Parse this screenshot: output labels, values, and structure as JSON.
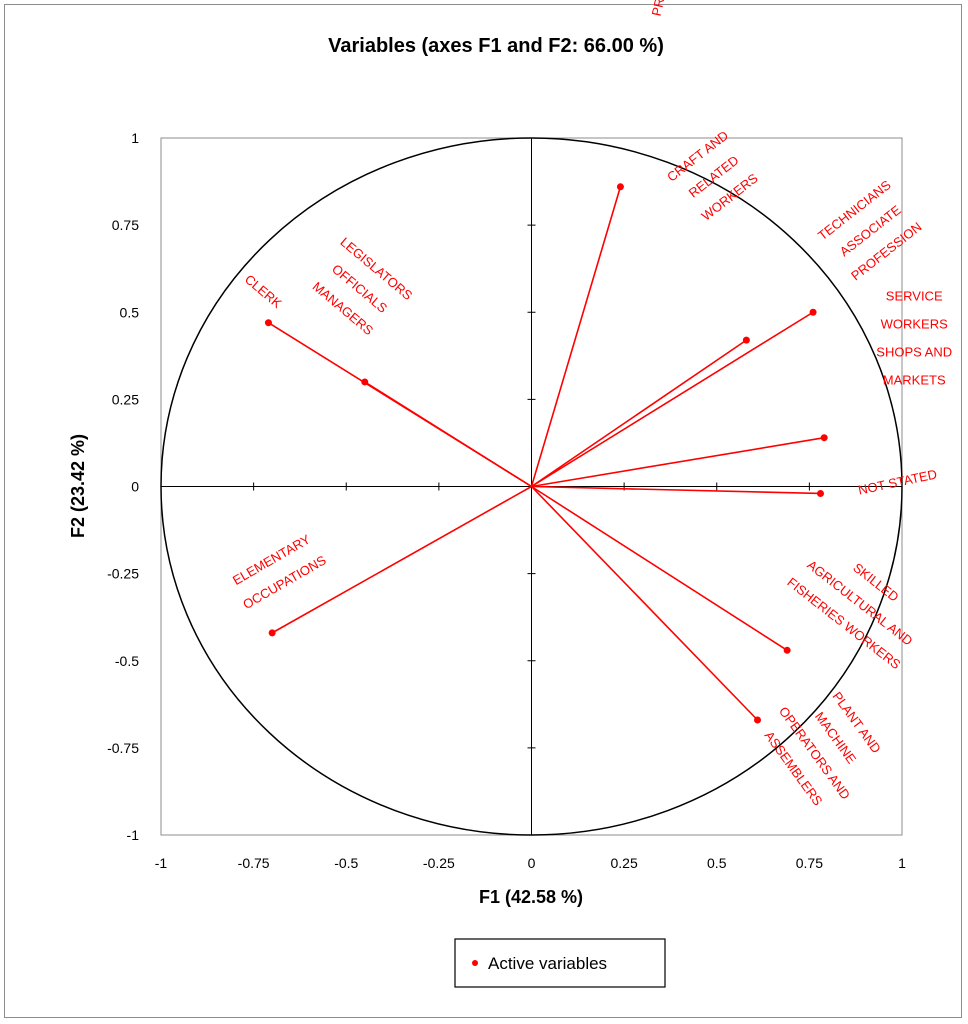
{
  "chart_data": {
    "type": "scatter",
    "title": "Variables (axes F1 and F2: 66.00 %)",
    "xlabel": "F1 (42.58 %)",
    "ylabel": "F2 (23.42 %)",
    "xlim": [
      -1,
      1
    ],
    "ylim": [
      -1,
      1
    ],
    "x_ticks": [
      "-1",
      "-0.75",
      "-0.5",
      "-0.25",
      "0",
      "0.25",
      "0.5",
      "0.75",
      "1"
    ],
    "y_ticks": [
      "1",
      "0.75",
      "0.5",
      "0.25",
      "0",
      "-0.25",
      "-0.5",
      "-0.75",
      "-1"
    ],
    "unit_circle": true,
    "series": [
      {
        "name": "Active variables",
        "color": "#ff0000",
        "points": [
          {
            "label": [
              "PROFESSIONALS"
            ],
            "x": 0.24,
            "y": 0.86
          },
          {
            "label": [
              "CRAFT AND",
              "RELATED",
              "WORKERS"
            ],
            "x": 0.58,
            "y": 0.42
          },
          {
            "label": [
              "TECHNICIANS",
              "ASSOCIATE",
              "PROFESSION"
            ],
            "x": 0.76,
            "y": 0.5
          },
          {
            "label": [
              "SERVICE",
              "WORKERS",
              "SHOPS AND",
              "MARKETS"
            ],
            "x": 0.79,
            "y": 0.14
          },
          {
            "label": [
              "NOT STATED"
            ],
            "x": 0.78,
            "y": -0.02
          },
          {
            "label": [
              "SKILLED",
              "AGRICULTURAL AND",
              "FISHERIES WORKERS"
            ],
            "x": 0.69,
            "y": -0.47
          },
          {
            "label": [
              "PLANT AND",
              "MACHINE",
              "OPERATORS AND",
              "ASSEMBLERS"
            ],
            "x": 0.61,
            "y": -0.67
          },
          {
            "label": [
              "CLERK"
            ],
            "x": -0.71,
            "y": 0.47
          },
          {
            "label": [
              "LEGISLATORS",
              "OFFICIALS",
              "MANAGERS"
            ],
            "x": -0.45,
            "y": 0.3
          },
          {
            "label": [
              "ELEMENTARY",
              "OCCUPATIONS"
            ],
            "x": -0.7,
            "y": -0.42
          }
        ]
      }
    ]
  }
}
